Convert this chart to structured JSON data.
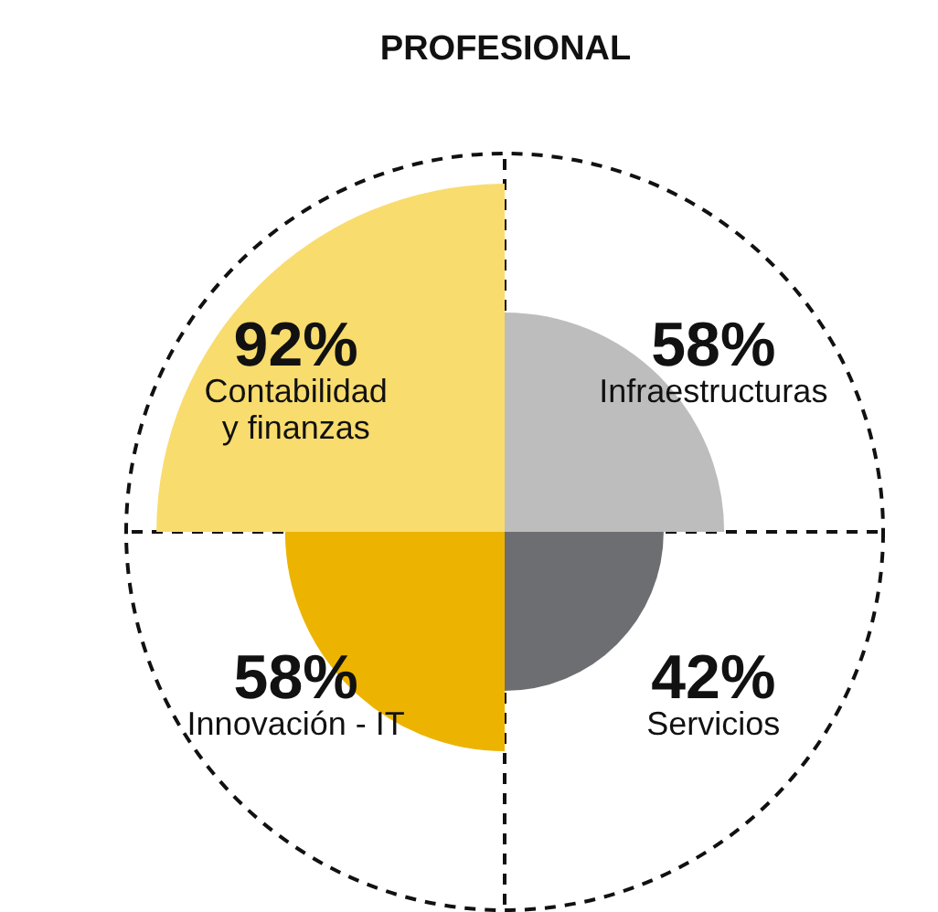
{
  "chart_data": {
    "type": "other",
    "title": "PROFESIONAL",
    "categories": [
      "Infraestructuras",
      "Servicios",
      "Innovación - IT",
      "Contabilidad\ny finanzas"
    ],
    "values": [
      58,
      42,
      58,
      92
    ],
    "value_labels": [
      "58%",
      "42%",
      "58%",
      "92%"
    ],
    "colors": [
      "#bdbdbd",
      "#6d6e71",
      "#ecb400",
      "#f8dc6e"
    ]
  }
}
